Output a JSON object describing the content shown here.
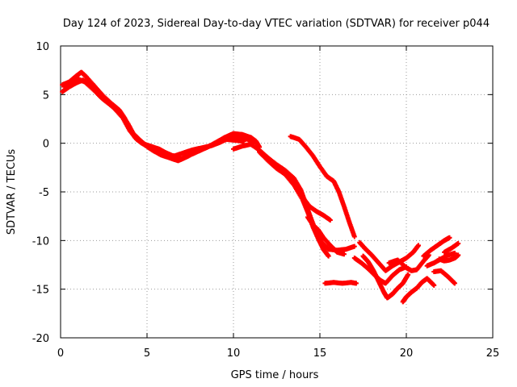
{
  "chart_data": {
    "type": "scatter",
    "title": "Day 124 of 2023, Sidereal Day-to-day VTEC variation (SDTVAR) for receiver p044",
    "xlabel": "GPS time / hours",
    "ylabel": "SDTVAR / TECUs",
    "xlim": [
      0,
      25
    ],
    "ylim": [
      -20,
      10
    ],
    "xticks": [
      0,
      5,
      10,
      15,
      20,
      25
    ],
    "yticks": [
      -20,
      -15,
      -10,
      -5,
      0,
      5,
      10
    ],
    "grid": true,
    "marker": "+",
    "series": [
      {
        "name": "SDTVAR",
        "color": "#ff0000",
        "tracks": [
          [
            [
              0.1,
              6.0
            ],
            [
              0.5,
              6.3
            ],
            [
              0.9,
              6.9
            ],
            [
              1.2,
              7.3
            ],
            [
              1.5,
              6.8
            ],
            [
              2.0,
              5.8
            ],
            [
              2.5,
              4.8
            ],
            [
              3.0,
              4.0
            ],
            [
              3.4,
              3.4
            ],
            [
              3.7,
              2.6
            ],
            [
              4.0,
              1.6
            ],
            [
              4.3,
              0.6
            ],
            [
              4.7,
              0.0
            ],
            [
              5.2,
              -0.3
            ],
            [
              5.7,
              -0.6
            ],
            [
              6.0,
              -0.9
            ],
            [
              6.5,
              -1.3
            ],
            [
              7.0,
              -1.6
            ],
            [
              7.5,
              -1.2
            ],
            [
              8.0,
              -0.8
            ],
            [
              8.5,
              -0.4
            ],
            [
              9.0,
              0.1
            ],
            [
              9.5,
              0.6
            ],
            [
              10.0,
              1.0
            ],
            [
              10.5,
              0.9
            ],
            [
              11.0,
              0.6
            ],
            [
              11.3,
              0.2
            ],
            [
              11.5,
              -0.4
            ]
          ],
          [
            [
              0.1,
              5.3
            ],
            [
              0.5,
              5.8
            ],
            [
              0.9,
              6.2
            ],
            [
              1.3,
              6.5
            ],
            [
              1.7,
              6.0
            ],
            [
              2.2,
              5.2
            ],
            [
              2.7,
              4.4
            ],
            [
              3.1,
              3.6
            ],
            [
              3.6,
              2.6
            ],
            [
              4.0,
              1.3
            ],
            [
              4.4,
              0.4
            ],
            [
              4.8,
              -0.1
            ],
            [
              5.3,
              -0.7
            ],
            [
              5.8,
              -1.2
            ],
            [
              6.3,
              -1.5
            ],
            [
              6.8,
              -1.8
            ],
            [
              7.3,
              -1.4
            ],
            [
              7.8,
              -0.9
            ],
            [
              8.3,
              -0.5
            ],
            [
              8.8,
              -0.2
            ],
            [
              9.3,
              0.2
            ],
            [
              9.8,
              0.6
            ],
            [
              10.3,
              0.7
            ],
            [
              10.7,
              0.5
            ],
            [
              11.2,
              0.1
            ]
          ],
          [
            [
              0.2,
              5.8
            ],
            [
              0.6,
              6.0
            ],
            [
              1.0,
              6.6
            ],
            [
              1.4,
              6.3
            ],
            [
              1.9,
              5.5
            ],
            [
              2.4,
              4.6
            ],
            [
              2.9,
              3.9
            ],
            [
              3.5,
              3.0
            ],
            [
              3.9,
              2.0
            ],
            [
              4.2,
              1.0
            ],
            [
              4.6,
              0.3
            ],
            [
              5.0,
              -0.3
            ],
            [
              5.5,
              -0.9
            ],
            [
              6.1,
              -1.2
            ],
            [
              6.6,
              -1.3
            ],
            [
              7.1,
              -1.0
            ],
            [
              7.6,
              -0.7
            ],
            [
              8.1,
              -0.5
            ],
            [
              8.6,
              -0.3
            ],
            [
              9.1,
              0.0
            ],
            [
              9.6,
              0.4
            ],
            [
              10.1,
              0.3
            ],
            [
              10.6,
              0.2
            ]
          ],
          [
            [
              10.0,
              -0.6
            ],
            [
              10.5,
              -0.3
            ],
            [
              11.0,
              -0.1
            ],
            [
              11.5,
              -0.7
            ],
            [
              12.0,
              -1.5
            ],
            [
              12.5,
              -2.2
            ],
            [
              13.0,
              -2.8
            ],
            [
              13.5,
              -3.6
            ],
            [
              13.9,
              -4.8
            ],
            [
              14.2,
              -6.3
            ],
            [
              14.5,
              -7.8
            ],
            [
              14.8,
              -9.2
            ],
            [
              15.1,
              -10.2
            ],
            [
              15.5,
              -10.9
            ],
            [
              16.0,
              -11.0
            ],
            [
              16.5,
              -10.9
            ],
            [
              17.0,
              -10.6
            ]
          ],
          [
            [
              11.5,
              -0.9
            ],
            [
              12.0,
              -1.8
            ],
            [
              12.5,
              -2.6
            ],
            [
              13.0,
              -3.2
            ],
            [
              13.5,
              -4.3
            ],
            [
              14.0,
              -5.8
            ],
            [
              14.3,
              -7.1
            ],
            [
              14.6,
              -8.6
            ],
            [
              14.9,
              -9.8
            ],
            [
              15.2,
              -10.9
            ],
            [
              15.5,
              -11.6
            ]
          ],
          [
            [
              12.5,
              -2.4
            ],
            [
              13.0,
              -3.2
            ],
            [
              13.4,
              -4.0
            ],
            [
              13.8,
              -4.9
            ],
            [
              14.1,
              -5.8
            ],
            [
              14.4,
              -6.5
            ],
            [
              14.8,
              -7.0
            ],
            [
              15.2,
              -7.4
            ],
            [
              15.6,
              -7.9
            ]
          ],
          [
            [
              13.3,
              0.7
            ],
            [
              13.8,
              0.4
            ],
            [
              14.2,
              -0.4
            ],
            [
              14.6,
              -1.3
            ],
            [
              15.0,
              -2.4
            ],
            [
              15.4,
              -3.4
            ],
            [
              15.8,
              -3.9
            ],
            [
              16.1,
              -5.0
            ],
            [
              16.4,
              -6.5
            ],
            [
              16.7,
              -8.1
            ],
            [
              17.0,
              -9.6
            ]
          ],
          [
            [
              14.3,
              -7.6
            ],
            [
              14.6,
              -8.4
            ],
            [
              14.9,
              -8.9
            ],
            [
              15.2,
              -9.7
            ],
            [
              15.6,
              -10.5
            ],
            [
              16.0,
              -11.2
            ],
            [
              16.4,
              -11.4
            ]
          ],
          [
            [
              15.3,
              -14.4
            ],
            [
              15.8,
              -14.3
            ],
            [
              16.3,
              -14.4
            ],
            [
              16.8,
              -14.3
            ],
            [
              17.1,
              -14.4
            ]
          ],
          [
            [
              17.0,
              -11.8
            ],
            [
              17.4,
              -12.3
            ],
            [
              17.8,
              -12.9
            ],
            [
              18.2,
              -13.6
            ],
            [
              18.5,
              -14.1
            ],
            [
              18.8,
              -14.4
            ],
            [
              19.2,
              -13.6
            ],
            [
              19.6,
              -13.0
            ],
            [
              20.0,
              -12.7
            ]
          ],
          [
            [
              17.3,
              -10.2
            ],
            [
              17.6,
              -10.8
            ],
            [
              18.0,
              -11.5
            ],
            [
              18.4,
              -12.3
            ],
            [
              18.8,
              -13.1
            ],
            [
              19.2,
              -12.6
            ],
            [
              19.6,
              -12.2
            ],
            [
              20.0,
              -11.8
            ],
            [
              20.4,
              -11.2
            ],
            [
              20.7,
              -10.5
            ]
          ],
          [
            [
              17.5,
              -11.6
            ],
            [
              17.8,
              -12.2
            ],
            [
              18.1,
              -13.1
            ],
            [
              18.4,
              -14.2
            ],
            [
              18.7,
              -15.3
            ],
            [
              18.9,
              -15.9
            ],
            [
              19.2,
              -15.5
            ],
            [
              19.5,
              -14.9
            ],
            [
              19.8,
              -14.4
            ],
            [
              20.1,
              -13.5
            ]
          ],
          [
            [
              19.0,
              -12.3
            ],
            [
              19.5,
              -12.0
            ],
            [
              20.0,
              -12.8
            ],
            [
              20.3,
              -13.1
            ],
            [
              20.6,
              -13.0
            ],
            [
              21.0,
              -12.1
            ],
            [
              21.3,
              -11.5
            ]
          ],
          [
            [
              19.8,
              -16.3
            ],
            [
              20.0,
              -15.8
            ],
            [
              20.3,
              -15.3
            ],
            [
              20.6,
              -14.9
            ],
            [
              20.9,
              -14.3
            ],
            [
              21.2,
              -13.9
            ],
            [
              21.6,
              -14.6
            ]
          ],
          [
            [
              21.0,
              -11.6
            ],
            [
              21.4,
              -11.0
            ],
            [
              21.8,
              -10.5
            ],
            [
              22.2,
              -10.0
            ],
            [
              22.5,
              -9.7
            ]
          ],
          [
            [
              21.2,
              -12.6
            ],
            [
              21.6,
              -12.3
            ],
            [
              22.0,
              -11.9
            ],
            [
              22.4,
              -11.5
            ],
            [
              22.8,
              -11.3
            ]
          ],
          [
            [
              21.6,
              -13.2
            ],
            [
              22.0,
              -13.1
            ],
            [
              22.4,
              -13.7
            ],
            [
              22.8,
              -14.4
            ]
          ],
          [
            [
              21.9,
              -11.9
            ],
            [
              22.2,
              -12.1
            ],
            [
              22.5,
              -12.0
            ],
            [
              22.8,
              -11.8
            ],
            [
              23.0,
              -11.5
            ]
          ],
          [
            [
              22.2,
              -11.2
            ],
            [
              22.6,
              -10.8
            ],
            [
              23.0,
              -10.3
            ]
          ]
        ]
      }
    ]
  }
}
